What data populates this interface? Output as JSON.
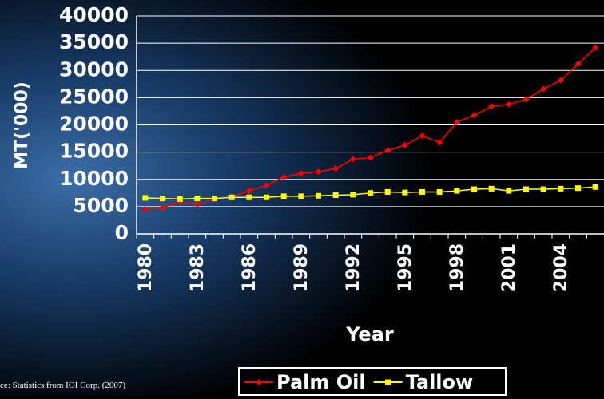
{
  "chart_data": {
    "type": "line",
    "y_label": "MT('000)",
    "x_label": "Year",
    "source": "ce: Statistics from IOI Corp. (2007)",
    "categories": [
      "1980",
      null,
      null,
      "1983",
      null,
      null,
      "1986",
      null,
      null,
      "1989",
      null,
      null,
      "1992",
      null,
      null,
      "1995",
      null,
      null,
      "1998",
      null,
      null,
      "2001",
      null,
      null,
      "2004",
      null,
      null
    ],
    "series": [
      {
        "name": "Palm Oil",
        "color": "#ff0000",
        "marker": "diamond",
        "values": [
          4500,
          4800,
          5800,
          5400,
          6400,
          6800,
          7900,
          8900,
          10400,
          11100,
          11400,
          12000,
          13700,
          14000,
          15300,
          16300,
          18000,
          16800,
          20500,
          21800,
          23400,
          23800,
          24700,
          26600,
          28200,
          31200,
          34200
        ]
      },
      {
        "name": "Tallow",
        "color": "#ffff00",
        "marker": "square",
        "values": [
          6600,
          6500,
          6400,
          6500,
          6500,
          6700,
          6700,
          6700,
          6900,
          6900,
          7000,
          7100,
          7200,
          7500,
          7700,
          7600,
          7700,
          7700,
          7900,
          8200,
          8300,
          7900,
          8200,
          8200,
          8300,
          8400,
          8600
        ]
      }
    ],
    "ylim": [
      0,
      40000
    ],
    "yticks": [
      0,
      5000,
      10000,
      15000,
      20000,
      25000,
      30000,
      35000,
      40000
    ],
    "grid": true
  }
}
